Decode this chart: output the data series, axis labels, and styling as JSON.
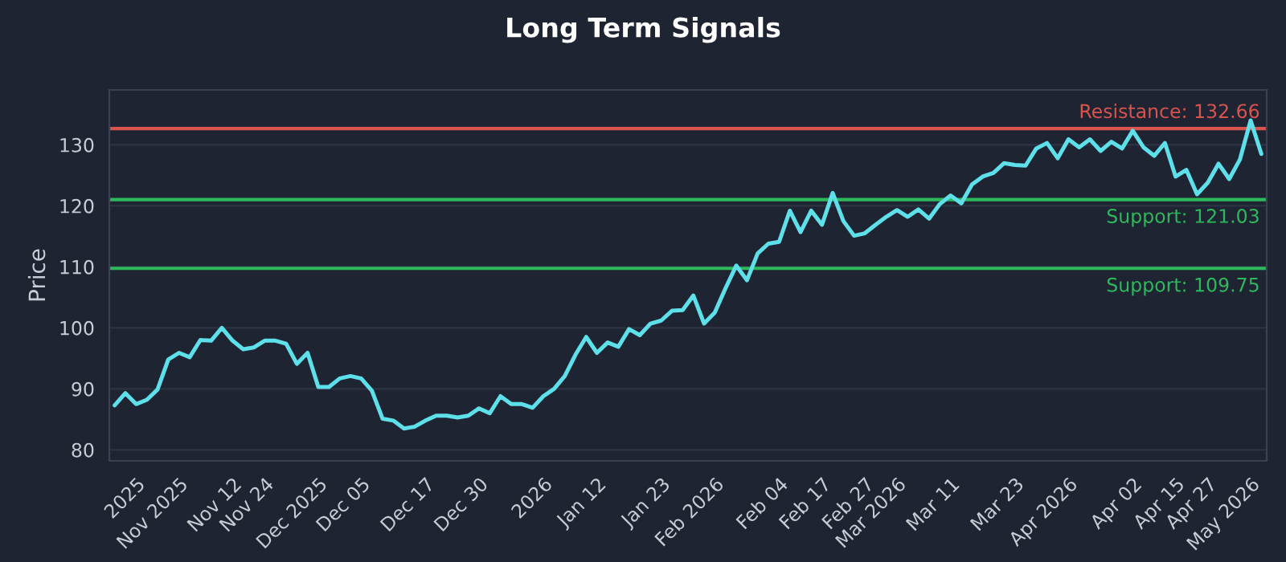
{
  "chart_data": {
    "type": "line",
    "title": "Long Term Signals",
    "ylabel": "Price",
    "categories": [
      null,
      null,
      "2025",
      null,
      null,
      null,
      "Nov 2025",
      null,
      null,
      null,
      null,
      "Nov 12",
      null,
      null,
      "Nov 24",
      null,
      null,
      null,
      null,
      "Dec 2025",
      null,
      null,
      null,
      "Dec 05",
      null,
      null,
      null,
      null,
      null,
      "Dec 17",
      null,
      null,
      null,
      null,
      "Dec 30",
      null,
      null,
      null,
      null,
      null,
      "2026",
      null,
      null,
      null,
      null,
      "Jan 12",
      null,
      null,
      null,
      null,
      null,
      "Jan 23",
      null,
      null,
      null,
      null,
      "Feb 2026",
      null,
      null,
      null,
      null,
      null,
      "Feb 04",
      null,
      null,
      null,
      "Feb 17",
      null,
      null,
      null,
      "Feb 27",
      null,
      null,
      "Mar 2026",
      null,
      null,
      null,
      null,
      "Mar 11",
      null,
      null,
      null,
      null,
      null,
      "Mar 23",
      null,
      null,
      null,
      null,
      "Apr 2026",
      null,
      null,
      null,
      null,
      null,
      "Apr 02",
      null,
      null,
      null,
      "Apr 15",
      null,
      null,
      "Apr 27",
      null,
      null,
      null,
      "May 2026",
      null
    ],
    "series": [
      {
        "color": "#5ee0ea",
        "values": [
          87.3,
          89.3,
          87.5,
          88.2,
          89.9,
          94.8,
          95.9,
          95.2,
          98.0,
          97.9,
          100.0,
          97.9,
          96.5,
          96.8,
          97.9,
          97.9,
          97.4,
          94.1,
          95.9,
          90.3,
          90.3,
          91.7,
          92.1,
          91.7,
          89.7,
          85.1,
          84.8,
          83.5,
          83.8,
          84.8,
          85.6,
          85.6,
          85.3,
          85.6,
          86.8,
          86.0,
          88.8,
          87.5,
          87.5,
          86.9,
          88.8,
          90.0,
          92.1,
          95.6,
          98.5,
          95.9,
          97.6,
          96.9,
          99.8,
          98.8,
          100.7,
          101.2,
          102.8,
          102.9,
          105.3,
          100.7,
          102.5,
          106.5,
          110.2,
          107.8,
          112.2,
          113.8,
          114.1,
          119.2,
          115.7,
          119.2,
          116.9,
          122.1,
          117.5,
          115.1,
          115.5,
          116.9,
          118.2,
          119.3,
          118.2,
          119.4,
          117.9,
          120.3,
          121.7,
          120.4,
          123.5,
          124.8,
          125.4,
          127.0,
          126.7,
          126.6,
          129.4,
          130.3,
          127.8,
          130.9,
          129.6,
          130.9,
          129.0,
          130.5,
          129.4,
          132.3,
          129.6,
          128.2,
          130.3,
          124.8,
          125.9,
          121.9,
          123.8,
          126.9,
          124.4,
          127.6,
          134.0,
          128.5
        ]
      }
    ],
    "ylim": [
      78.2,
      139
    ],
    "yticks": [
      80,
      90,
      100,
      110,
      120,
      130
    ],
    "grid": "y",
    "ref_lines": [
      {
        "axis": "y",
        "value": 132.66,
        "label": "Resistance: 132.66",
        "color": "#d9534f"
      },
      {
        "axis": "y",
        "value": 121.03,
        "label": "Support: 121.03",
        "color": "#2eb85c"
      },
      {
        "axis": "y",
        "value": 109.75,
        "label": "Support: 109.75",
        "color": "#2eb85c"
      }
    ]
  }
}
